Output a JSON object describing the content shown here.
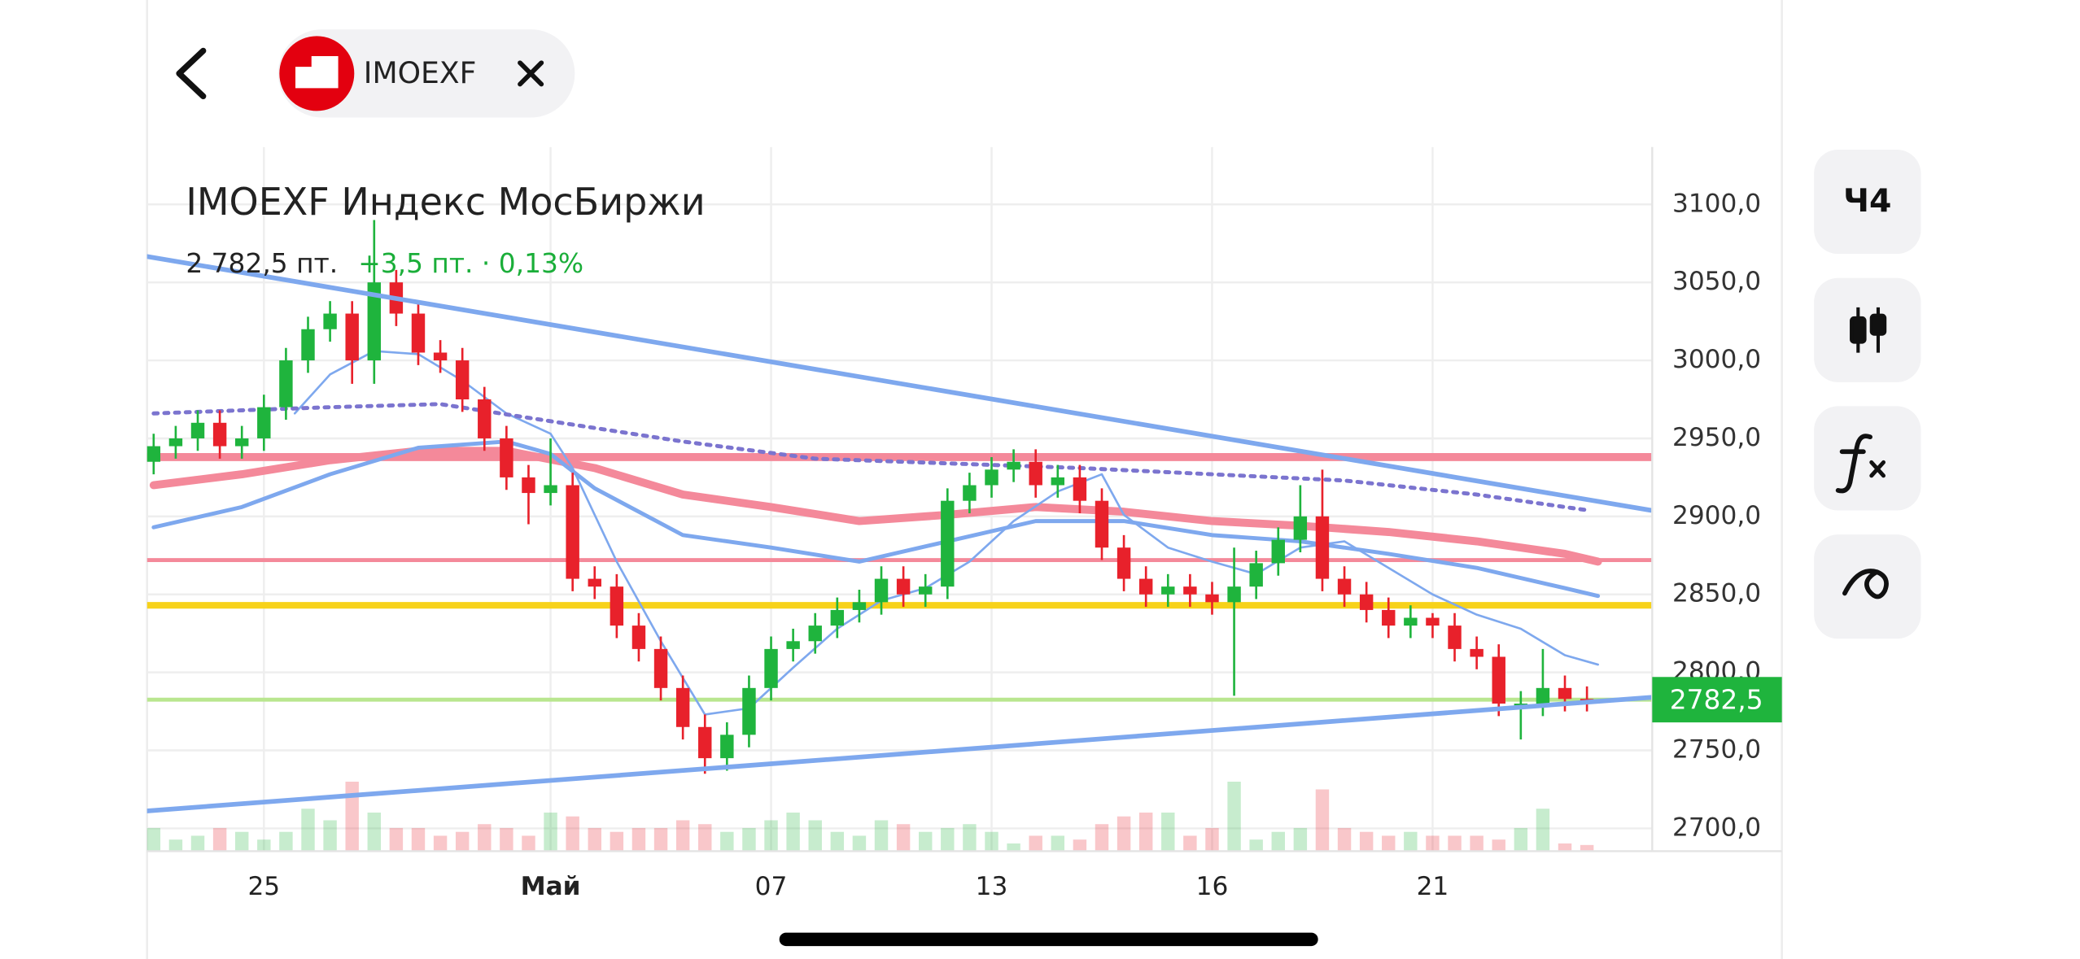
{
  "header": {
    "chip_label": "IMOEXF"
  },
  "toolbar": {
    "interval": "Ч4"
  },
  "chart_data": {
    "type": "candlestick",
    "title": "IMOEXF Индекс МосБиржи",
    "subtitle": {
      "price": "2 782,5 пт.",
      "change": "+3,5 пт. · 0,13%"
    },
    "xlim": [
      -0.3,
      67.9
    ],
    "ylim": [
      2685.4,
      3136.8
    ],
    "xticks": [
      {
        "value": 5,
        "label": "25"
      },
      {
        "value": 18,
        "label": "Май",
        "bold": true
      },
      {
        "value": 28,
        "label": "07"
      },
      {
        "value": 38,
        "label": "13"
      },
      {
        "value": 48,
        "label": "16"
      },
      {
        "value": 58,
        "label": "21"
      }
    ],
    "yticks": [
      {
        "value": 3100,
        "label": "3100,0"
      },
      {
        "value": 3050,
        "label": "3050,0"
      },
      {
        "value": 3000,
        "label": "3000,0"
      },
      {
        "value": 2950,
        "label": "2950,0"
      },
      {
        "value": 2900,
        "label": "2900,0"
      },
      {
        "value": 2850,
        "label": "2850,0"
      },
      {
        "value": 2800,
        "label": "2800,0"
      },
      {
        "value": 2750,
        "label": "2750,0"
      },
      {
        "value": 2700,
        "label": "2700,0"
      }
    ],
    "grid": true,
    "up_color": "#1fb43d",
    "down_color": "#e8212b",
    "open": [
      2935,
      2945,
      2950,
      2960,
      2945,
      2950,
      2970,
      3000,
      3020,
      3030,
      3000,
      3050,
      3030,
      3005,
      3000,
      2975,
      2950,
      2925,
      2915,
      2920,
      2860,
      2855,
      2830,
      2815,
      2790,
      2765,
      2745,
      2760,
      2790,
      2815,
      2820,
      2830,
      2840,
      2845,
      2860,
      2850,
      2855,
      2910,
      2920,
      2930,
      2935,
      2920,
      2925,
      2910,
      2880,
      2860,
      2850,
      2855,
      2850,
      2845,
      2855,
      2870,
      2885,
      2900,
      2860,
      2850,
      2840,
      2830,
      2835,
      2830,
      2815,
      2810,
      2780,
      2780,
      2790,
      2783
    ],
    "high": [
      2953,
      2958,
      2968,
      2968,
      2958,
      2978,
      3008,
      3028,
      3038,
      3038,
      3090,
      3058,
      3038,
      3013,
      3008,
      2983,
      2958,
      2933,
      2950,
      2928,
      2868,
      2863,
      2838,
      2823,
      2798,
      2773,
      2768,
      2798,
      2823,
      2828,
      2838,
      2848,
      2853,
      2868,
      2868,
      2863,
      2918,
      2928,
      2938,
      2943,
      2943,
      2933,
      2933,
      2918,
      2888,
      2868,
      2863,
      2863,
      2858,
      2880,
      2878,
      2893,
      2920,
      2930,
      2868,
      2858,
      2848,
      2843,
      2838,
      2838,
      2823,
      2818,
      2788,
      2815,
      2798,
      2791
    ],
    "low": [
      2927,
      2937,
      2942,
      2937,
      2937,
      2942,
      2962,
      2992,
      3012,
      2985,
      2985,
      3022,
      2997,
      2992,
      2967,
      2942,
      2917,
      2895,
      2907,
      2852,
      2847,
      2822,
      2807,
      2782,
      2757,
      2735,
      2737,
      2752,
      2782,
      2807,
      2812,
      2822,
      2832,
      2837,
      2842,
      2842,
      2847,
      2902,
      2912,
      2922,
      2912,
      2912,
      2902,
      2872,
      2852,
      2842,
      2842,
      2842,
      2837,
      2785,
      2847,
      2862,
      2877,
      2852,
      2842,
      2832,
      2822,
      2822,
      2822,
      2807,
      2802,
      2772,
      2757,
      2772,
      2775,
      2775
    ],
    "close": [
      2945,
      2950,
      2960,
      2945,
      2950,
      2970,
      3000,
      3020,
      3030,
      3000,
      3050,
      3030,
      3005,
      3000,
      2975,
      2950,
      2925,
      2915,
      2920,
      2860,
      2855,
      2830,
      2815,
      2790,
      2765,
      2745,
      2760,
      2790,
      2815,
      2820,
      2830,
      2840,
      2845,
      2860,
      2850,
      2855,
      2910,
      2920,
      2930,
      2935,
      2920,
      2925,
      2910,
      2880,
      2860,
      2850,
      2855,
      2850,
      2845,
      2855,
      2870,
      2885,
      2900,
      2860,
      2850,
      2840,
      2830,
      2835,
      2830,
      2815,
      2810,
      2780,
      2780,
      2790,
      2783,
      2782.5
    ],
    "volume": [
      3,
      1.5,
      2,
      3,
      2.5,
      1.5,
      2.5,
      5.5,
      4,
      9,
      5,
      3,
      3,
      2,
      2.5,
      3.5,
      3,
      2,
      5,
      4.5,
      3,
      2.5,
      3,
      3,
      4,
      3.5,
      2.5,
      3,
      4,
      5,
      4,
      2.5,
      2,
      4,
      3.5,
      2.5,
      3,
      3.5,
      2.5,
      1,
      2,
      2,
      1.5,
      3.5,
      4.5,
      5,
      5,
      2,
      3,
      9,
      1.5,
      2.5,
      3,
      8,
      3,
      2.5,
      2,
      2.5,
      2,
      2,
      2,
      1.5,
      3,
      5.5,
      1,
      0.8
    ],
    "levels": [
      {
        "value": 2938,
        "color": "#f4899a",
        "width": 6
      },
      {
        "value": 2872,
        "color": "#f4899a",
        "width": 3
      },
      {
        "value": 2843,
        "color": "#f7d21a",
        "width": 5
      },
      {
        "value": 2782.5,
        "color": "#b9e68f",
        "width": 3
      }
    ],
    "lines": [
      {
        "color": "#7ea8ee",
        "width": 3.5,
        "dash": false,
        "x": [
          -0.3,
          67.9
        ],
        "values": [
          3066.6,
          2903.9
        ]
      },
      {
        "color": "#7ea8ee",
        "width": 3.5,
        "dash": false,
        "x": [
          -0.3,
          67.9
        ],
        "values": [
          2711.2,
          2784
        ]
      },
      {
        "color": "#f4899a",
        "width": 6,
        "dash": false,
        "x": [
          0,
          4,
          8,
          12,
          16,
          20,
          24,
          28,
          32,
          36,
          40,
          44,
          48,
          52,
          56,
          60,
          64,
          65.5
        ],
        "values": [
          2920,
          2927,
          2936,
          2942,
          2942,
          2931,
          2914,
          2906,
          2897,
          2901,
          2906,
          2903,
          2897,
          2894,
          2890,
          2884,
          2876,
          2871
        ]
      },
      {
        "color": "#7ea8ee",
        "width": 3,
        "dash": false,
        "x": [
          0,
          4,
          8,
          12,
          16,
          18,
          20,
          24,
          28,
          32,
          36,
          40,
          44,
          48,
          52,
          56,
          60,
          64,
          65.5
        ],
        "values": [
          2893,
          2906,
          2927,
          2944,
          2948,
          2940,
          2918,
          2888,
          2880,
          2871,
          2884,
          2897,
          2897,
          2888,
          2884,
          2876,
          2867,
          2854,
          2849
        ]
      },
      {
        "color": "#7ea8ee",
        "width": 1.6,
        "dash": false,
        "x": [
          6.4,
          8,
          10,
          12,
          14,
          16,
          18,
          19,
          21,
          23,
          25,
          27,
          29,
          31,
          33,
          35,
          37,
          39,
          41,
          43,
          44,
          46,
          48,
          50,
          52,
          54,
          56,
          58,
          60,
          62,
          64,
          65.5
        ],
        "values": [
          2966,
          2991,
          3006,
          3004,
          2987,
          2966,
          2953,
          2931,
          2871,
          2820,
          2773,
          2777,
          2803,
          2828,
          2846,
          2854,
          2871,
          2897,
          2916,
          2927,
          2901,
          2880,
          2871,
          2863,
          2880,
          2884,
          2867,
          2850,
          2837,
          2828,
          2811,
          2805
        ]
      },
      {
        "color": "#7b74cf",
        "width": 3,
        "dash": true,
        "x": [
          0,
          8,
          13,
          18,
          24,
          30,
          36,
          42,
          48,
          54,
          60,
          65
        ],
        "values": [
          2966,
          2970,
          2972,
          2961,
          2948,
          2937,
          2934,
          2931,
          2927,
          2923,
          2914,
          2904
        ]
      }
    ],
    "price_marker": {
      "value": 2782.5,
      "label": "2782,5",
      "color": "#1fb43d"
    }
  }
}
